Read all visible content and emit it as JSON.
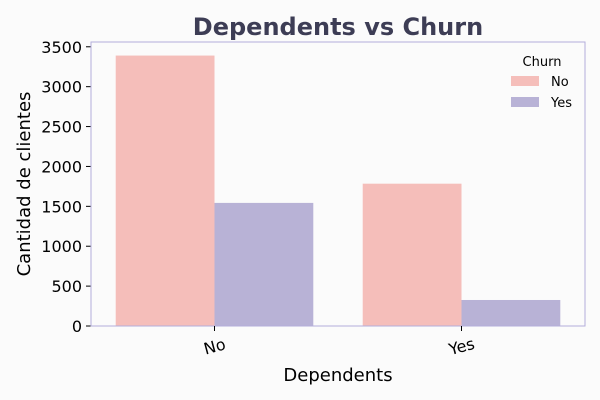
{
  "colors": {
    "background": "#fbfbfb",
    "frame": "#b3aedb",
    "title": "#3d3d55",
    "text": "#000000",
    "series_no": "#f5beba",
    "series_yes": "#b8b2d6"
  },
  "chart_data": {
    "type": "bar",
    "title": "Dependents vs Churn",
    "xlabel": "Dependents",
    "ylabel": "Cantidad de clientes",
    "categories": [
      "No",
      "Yes"
    ],
    "series": [
      {
        "name": "No",
        "values": [
          3390,
          1784
        ]
      },
      {
        "name": "Yes",
        "values": [
          1543,
          326
        ]
      }
    ],
    "ylim": [
      0,
      3560
    ],
    "yticks": [
      0,
      500,
      1000,
      1500,
      2000,
      2500,
      3000,
      3500
    ],
    "legend": {
      "title": "Churn",
      "position": "top-right"
    },
    "grid": false,
    "xtick_rotation": "slanted"
  }
}
